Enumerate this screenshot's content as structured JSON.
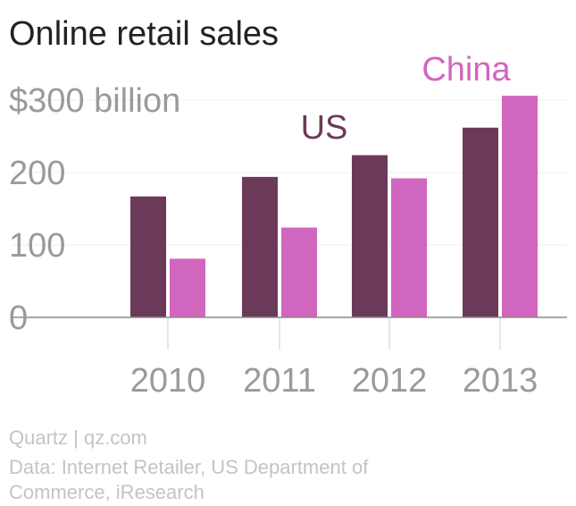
{
  "chart_data": {
    "type": "bar",
    "title": "Online retail sales",
    "categories": [
      "2010",
      "2011",
      "2012",
      "2013"
    ],
    "series": [
      {
        "name": "US",
        "values": [
          167,
          194,
          224,
          262
        ],
        "color": "#6b3a59"
      },
      {
        "name": "China",
        "values": [
          81,
          124,
          192,
          306
        ],
        "color": "#d166bf"
      }
    ],
    "ylim": [
      0,
      300
    ],
    "yticks": [
      {
        "value": 300,
        "label": "$300 billion"
      },
      {
        "value": 200,
        "label": "200"
      },
      {
        "value": 100,
        "label": "100"
      },
      {
        "value": 0,
        "label": "0"
      }
    ],
    "grid": true,
    "legend": "inline labels above bars"
  },
  "footer": {
    "credit": "Quartz | qz.com",
    "source_line1": "Data: Internet Retailer, US Department of",
    "source_line2": "Commerce, iResearch"
  }
}
